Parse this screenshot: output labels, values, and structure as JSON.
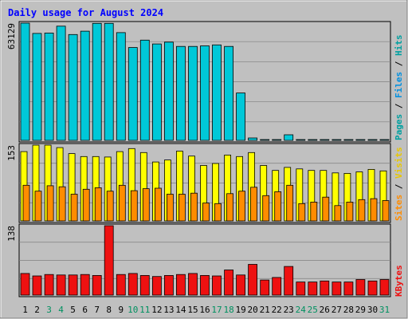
{
  "title": "Daily usage for August 2024",
  "colors": {
    "frame_bg": "#c0c0c0",
    "plot_bg": "#c0c0c0",
    "title": "#0000ff",
    "grid": "#808080",
    "hits": "#00c8d8",
    "files": "#0090e0",
    "pages": "#00a0a0",
    "visits": "#ffff00",
    "sites": "#ff8c00",
    "kbytes": "#ee1111",
    "weekend_label": "#009060",
    "weekday_label": "#000000",
    "bar_edge": "#000000"
  },
  "legend": {
    "pages": "Pages",
    "files": "Files",
    "hits": "Hits",
    "sites": "Sites",
    "visits": "Visits",
    "kbytes": "KBytes",
    "sep": "/"
  },
  "chart_data": {
    "type": "bar",
    "title": "Daily usage for August 2024",
    "categories": [
      "1",
      "2",
      "3",
      "4",
      "5",
      "6",
      "7",
      "8",
      "9",
      "10",
      "11",
      "12",
      "13",
      "14",
      "15",
      "16",
      "17",
      "18",
      "19",
      "20",
      "21",
      "22",
      "23",
      "24",
      "25",
      "26",
      "27",
      "28",
      "29",
      "30",
      "31"
    ],
    "weekend_days": [
      "3",
      "4",
      "10",
      "11",
      "17",
      "18",
      "24",
      "25",
      "31"
    ],
    "panels": [
      {
        "name": "hits-panel",
        "ymax_label": "63129",
        "ylim": [
          0,
          63129
        ],
        "series": [
          {
            "name": "Hits",
            "values": [
              63129,
              57600,
              57800,
              61500,
              57000,
              58800,
              63000,
              63000,
              58000,
              50000,
              54000,
              51900,
              52900,
              50600,
              50600,
              50900,
              51400,
              50600,
              25500,
              1300,
              450,
              450,
              3000,
              450,
              450,
              450,
              450,
              450,
              450,
              450,
              450
            ]
          }
        ]
      },
      {
        "name": "visits-panel",
        "ymax_label": "153",
        "ylim": [
          0,
          153
        ],
        "series": [
          {
            "name": "Visits",
            "values": [
              140,
              153,
              153,
              148,
              136,
              130,
              130,
              129,
              140,
              146,
              138,
              119,
              123,
              141,
              131,
              112,
              116,
              133,
              130,
              138,
              112,
              102,
              108,
              105,
              102,
              102,
              97,
              96,
              99,
              104,
              101
            ]
          },
          {
            "name": "Sites",
            "values": [
              72,
              60,
              71,
              69,
              54,
              64,
              67,
              60,
              72,
              61,
              65,
              66,
              54,
              54,
              56,
              36,
              35,
              55,
              60,
              68,
              51,
              59,
              72,
              35,
              38,
              48,
              31,
              38,
              43,
              45,
              41
            ]
          }
        ]
      },
      {
        "name": "kbytes-panel",
        "ymax_label": "138",
        "ylim": [
          0,
          138
        ],
        "series": [
          {
            "name": "KBytes",
            "values": [
              43,
              38,
              41,
              40,
              40,
              41,
              39,
              138,
              41,
              43,
              39,
              37,
              39,
              41,
              43,
              39,
              38,
              50,
              40,
              61,
              30,
              35,
              57,
              26,
              26,
              28,
              26,
              26,
              31,
              28,
              31
            ]
          }
        ]
      }
    ],
    "legend_placement": "right",
    "grid": true
  }
}
